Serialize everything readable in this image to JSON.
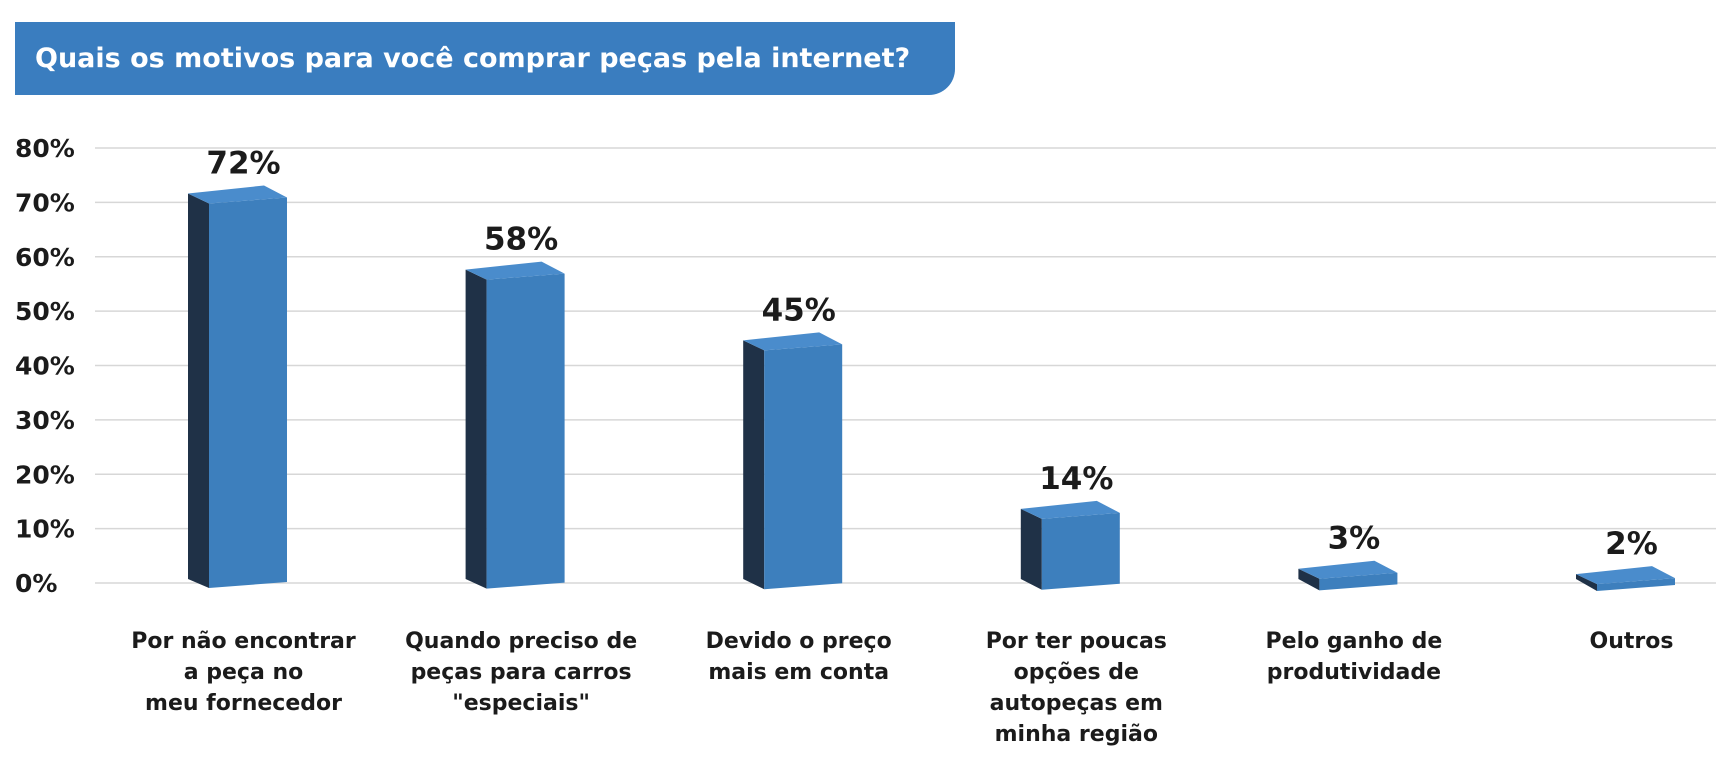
{
  "title": "Quais os motivos para você comprar peças pela internet?",
  "colors": {
    "bar_front": "#3d7fbd",
    "bar_side": "#1f3147",
    "bar_top": "#4a8ccc",
    "banner": "#3a7dbf",
    "grid": "#d7d7d7"
  },
  "chart_data": {
    "type": "bar",
    "title": "Quais os motivos para você comprar peças pela internet?",
    "xlabel": "",
    "ylabel": "",
    "ylim": [
      0,
      80
    ],
    "y_ticks": [
      "0%",
      "10%",
      "20%",
      "30%",
      "40%",
      "50%",
      "60%",
      "70%",
      "80%"
    ],
    "y_tick_values": [
      0,
      10,
      20,
      30,
      40,
      50,
      60,
      70,
      80
    ],
    "grid": true,
    "categories": [
      [
        "Por não encontrar",
        "a peça no",
        "meu fornecedor"
      ],
      [
        "Quando preciso de",
        "peças para carros",
        "\"especiais\""
      ],
      [
        "Devido o preço",
        "mais em conta"
      ],
      [
        "Por ter poucas",
        "opções de",
        "autopeças em",
        "minha região"
      ],
      [
        "Pelo ganho de",
        "produtividade"
      ],
      [
        "Outros"
      ]
    ],
    "values": [
      72,
      58,
      45,
      14,
      3,
      2
    ],
    "value_labels": [
      "72%",
      "58%",
      "45%",
      "14%",
      "3%",
      "2%"
    ]
  }
}
